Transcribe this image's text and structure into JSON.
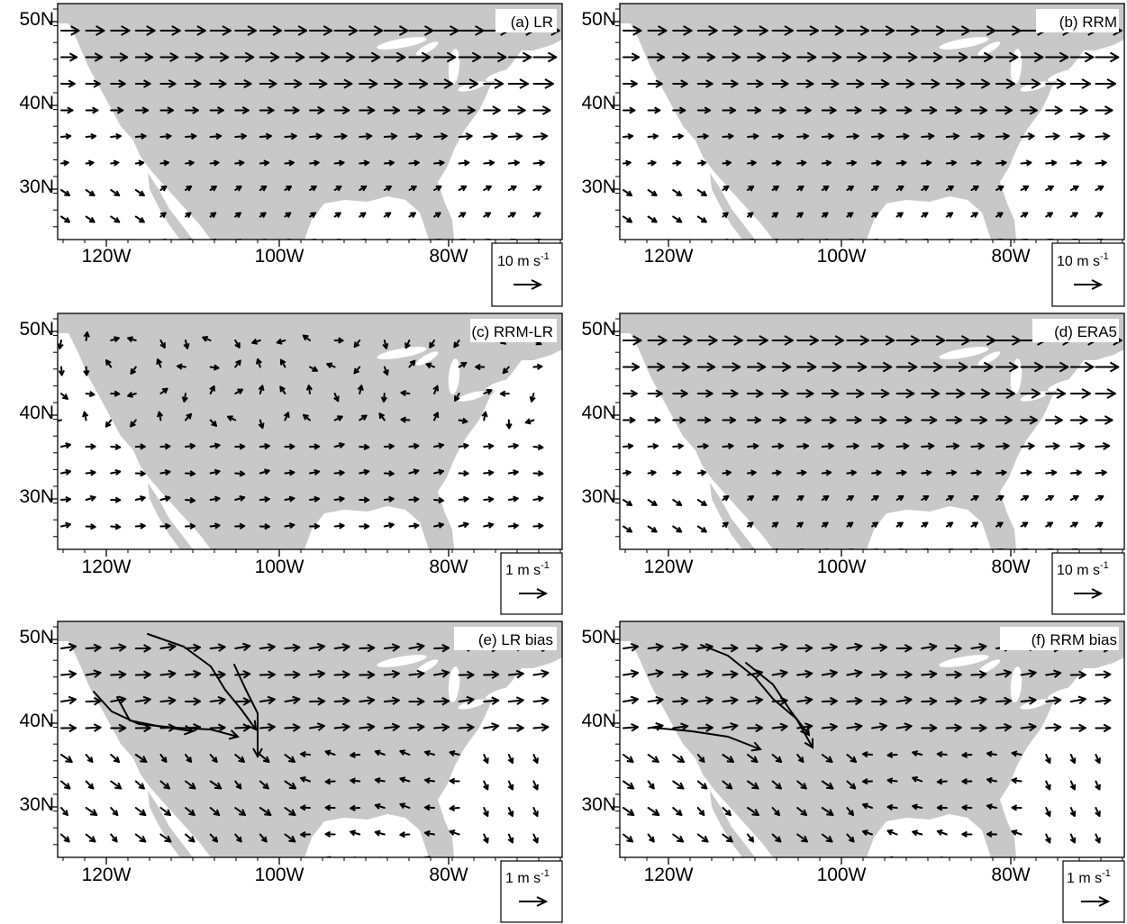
{
  "figure": {
    "lat_ticks": [
      "50N",
      "40N",
      "30N"
    ],
    "lon_ticks": [
      "120W",
      "100W",
      "80W"
    ],
    "colors": {
      "land": "#c8c8c8",
      "ocean": "#ffffff",
      "vector": "#000000",
      "frame": "#000000"
    },
    "panels": [
      {
        "id": "a",
        "title": "(a) LR",
        "ref_label": "10 m s",
        "ref_exp": "-1",
        "kind": "mean"
      },
      {
        "id": "b",
        "title": "(b) RRM",
        "ref_label": "10 m s",
        "ref_exp": "-1",
        "kind": "mean"
      },
      {
        "id": "c",
        "title": "(c) RRM-LR",
        "ref_label": "1 m s",
        "ref_exp": "-1",
        "kind": "diff"
      },
      {
        "id": "d",
        "title": "(d) ERA5",
        "ref_label": "10 m s",
        "ref_exp": "-1",
        "kind": "mean"
      },
      {
        "id": "e",
        "title": "(e) LR bias",
        "ref_label": "1 m s",
        "ref_exp": "-1",
        "kind": "biasLR"
      },
      {
        "id": "f",
        "title": "(f) RRM bias",
        "ref_label": "1 m s",
        "ref_exp": "-1",
        "kind": "biasRRM"
      }
    ]
  }
}
